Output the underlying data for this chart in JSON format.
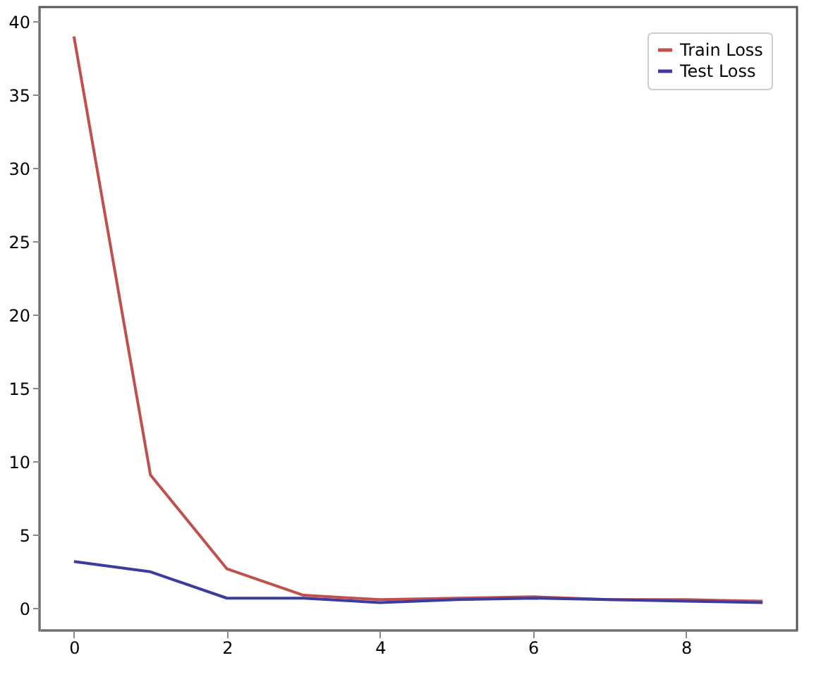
{
  "chart_data": {
    "type": "line",
    "x": [
      0,
      1,
      2,
      3,
      4,
      5,
      6,
      7,
      8,
      9
    ],
    "series": [
      {
        "name": "Train Loss",
        "color": "#c0504d",
        "values": [
          39.0,
          9.1,
          2.7,
          0.9,
          0.6,
          0.7,
          0.8,
          0.6,
          0.6,
          0.5
        ]
      },
      {
        "name": "Test Loss",
        "color": "#3c3ca0",
        "values": [
          3.2,
          2.5,
          0.7,
          0.7,
          0.4,
          0.6,
          0.7,
          0.6,
          0.5,
          0.4
        ]
      }
    ],
    "xlim": [
      -0.45,
      9.45
    ],
    "xticks": [
      0,
      2,
      4,
      6,
      8
    ],
    "ylim": [
      -1.5,
      41
    ],
    "yticks": [
      0,
      5,
      10,
      15,
      20,
      25,
      30,
      35,
      40
    ],
    "legend": "top right",
    "grid": false
  }
}
